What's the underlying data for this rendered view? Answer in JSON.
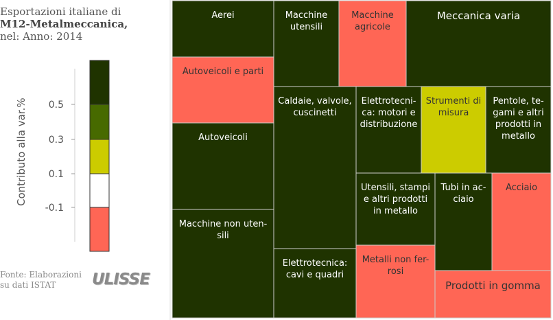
{
  "header": {
    "title_line1": "Esportazioni italiane di",
    "title_line2": "M12-Metalmeccanica,",
    "title_line3": "nel: Anno: 2014"
  },
  "legend": {
    "title": "Contributo alla var.%",
    "ticks": [
      "0.5",
      "0.3",
      "0.1",
      "-0.1"
    ],
    "colors": [
      "#1f3300",
      "#476a00",
      "#cccc00",
      "#ffffff",
      "#ff6655"
    ]
  },
  "footer": {
    "source_line1": "Fonte: Elaborazioni",
    "source_line2": "su dati ISTAT",
    "logo_text": "ULISSE"
  },
  "chart_data": {
    "type": "treemap",
    "color_scale": {
      "variable": "Contributo alla var.%",
      "breaks": [
        -0.1,
        0.1,
        0.3,
        0.5
      ]
    },
    "colors": {
      "dark_green": "#1f3300",
      "yellow": "#cccc00",
      "red": "#ff6655",
      "border": "#cccccc"
    },
    "items": [
      {
        "label": "Aerei",
        "color_class": "dark_green"
      },
      {
        "label": "Autoveicoli e parti",
        "color_class": "red"
      },
      {
        "label": "Autoveicoli",
        "color_class": "dark_green"
      },
      {
        "label": "Macchine non utensili",
        "color_class": "dark_green"
      },
      {
        "label": "Macchine utensili",
        "color_class": "dark_green"
      },
      {
        "label": "Macchine agricole",
        "color_class": "red"
      },
      {
        "label": "Meccanica varia",
        "color_class": "dark_green"
      },
      {
        "label": "Caldaie, valvole, cuscinetti",
        "color_class": "dark_green"
      },
      {
        "label": "Elettrotecnica: motori e distribuzione",
        "color_class": "dark_green"
      },
      {
        "label": "Strumenti di misura",
        "color_class": "yellow"
      },
      {
        "label": "Pentole, tegami e altri prodotti in metallo",
        "color_class": "dark_green"
      },
      {
        "label": "Utensili, stampi e altri prodotti in metallo",
        "color_class": "dark_green"
      },
      {
        "label": "Tubi in acciaio",
        "color_class": "dark_green"
      },
      {
        "label": "Acciaio",
        "color_class": "red"
      },
      {
        "label": "Elettrotecnica: cavi e quadri",
        "color_class": "dark_green"
      },
      {
        "label": "Metalli non ferrosi",
        "color_class": "red"
      },
      {
        "label": "Prodotti in gomma",
        "color_class": "red"
      }
    ]
  }
}
